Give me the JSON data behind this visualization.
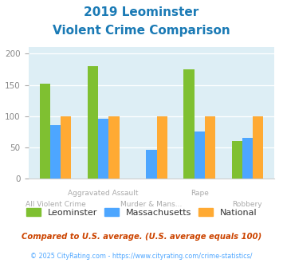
{
  "title_line1": "2019 Leominster",
  "title_line2": "Violent Crime Comparison",
  "categories": [
    "All Violent Crime",
    "Aggravated Assault",
    "Murder & Mans...",
    "Rape",
    "Robbery"
  ],
  "xlabel_top": [
    "",
    "Aggravated Assault",
    "",
    "Rape",
    ""
  ],
  "xlabel_bottom": [
    "All Violent Crime",
    "",
    "Murder & Mans...",
    "",
    "Robbery"
  ],
  "series": {
    "Leominster": [
      152,
      180,
      0,
      175,
      60
    ],
    "Massachusetts": [
      86,
      96,
      46,
      75,
      65
    ],
    "National": [
      100,
      100,
      100,
      100,
      100
    ]
  },
  "leominster_color": "#7fc031",
  "massachusetts_color": "#4da6ff",
  "national_color": "#ffaa33",
  "ylim": [
    0,
    210
  ],
  "yticks": [
    0,
    50,
    100,
    150,
    200
  ],
  "background_color": "#ddeef5",
  "title_color": "#1a7ab5",
  "footer_note": "Compared to U.S. average. (U.S. average equals 100)",
  "footer_copy": "© 2025 CityRating.com - https://www.cityrating.com/crime-statistics/",
  "footer_note_color": "#cc4400",
  "footer_copy_color": "#4da6ff",
  "legend_labels": [
    "Leominster",
    "Massachusetts",
    "National"
  ],
  "bar_width": 0.22
}
